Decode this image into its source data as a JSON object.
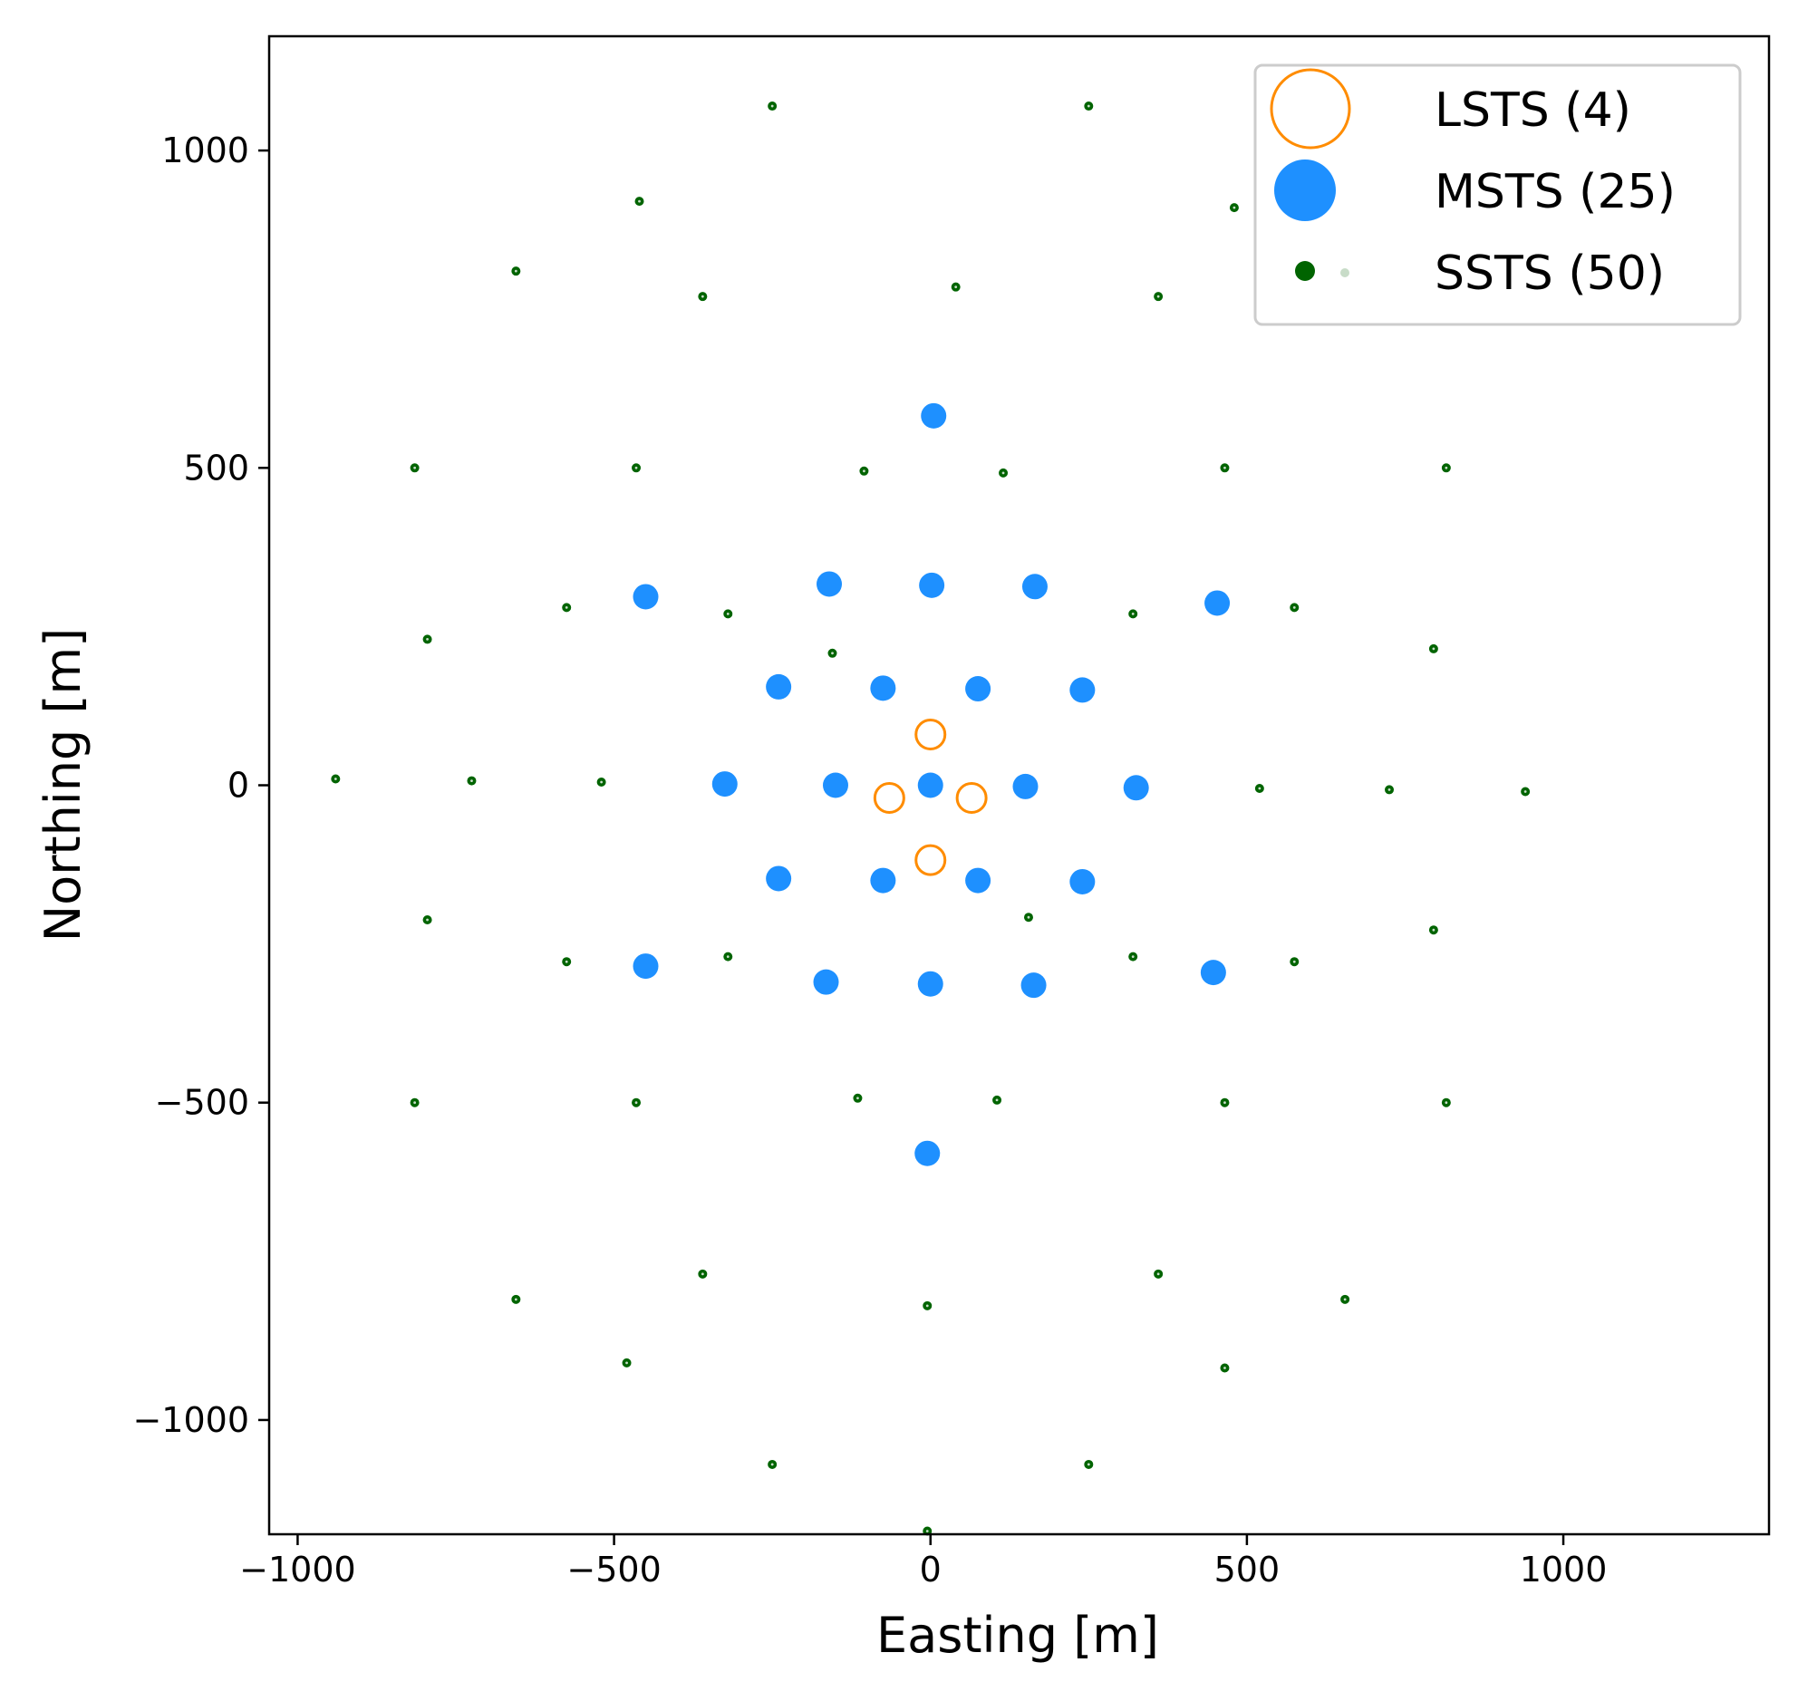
{
  "chart_data": {
    "type": "scatter",
    "title": "",
    "xlabel": "Easting [m]",
    "ylabel": "Northing [m]",
    "xlim": [
      -1045,
      1325
    ],
    "ylim": [
      -1180,
      1180
    ],
    "xticks": [
      -1000,
      -500,
      0,
      500,
      1000
    ],
    "yticks": [
      -1000,
      -500,
      0,
      500,
      1000
    ],
    "xtick_labels": [
      "−1000",
      "−500",
      "0",
      "500",
      "1000"
    ],
    "ytick_labels": [
      "−1000",
      "−500",
      "0",
      "500",
      "1000"
    ],
    "grid": false,
    "legend_position": "top-right",
    "series": [
      {
        "name": "LSTS (4)",
        "marker": "open-circle-large",
        "color": "#ff8c00",
        "points": [
          [
            0,
            80
          ],
          [
            -65,
            -20
          ],
          [
            65,
            -20
          ],
          [
            0,
            -118
          ]
        ]
      },
      {
        "name": "MSTS (25)",
        "marker": "filled-circle-medium",
        "color": "#1e90ff",
        "points": [
          [
            5,
            582
          ],
          [
            -450,
            297
          ],
          [
            -160,
            317
          ],
          [
            2,
            315
          ],
          [
            165,
            313
          ],
          [
            453,
            287
          ],
          [
            -240,
            155
          ],
          [
            -75,
            153
          ],
          [
            75,
            152
          ],
          [
            240,
            150
          ],
          [
            -325,
            2
          ],
          [
            -150,
            0
          ],
          [
            0,
            0
          ],
          [
            150,
            -2
          ],
          [
            325,
            -4
          ],
          [
            -240,
            -147
          ],
          [
            -75,
            -150
          ],
          [
            75,
            -150
          ],
          [
            240,
            -152
          ],
          [
            -450,
            -285
          ],
          [
            -165,
            -310
          ],
          [
            0,
            -313
          ],
          [
            163,
            -315
          ],
          [
            447,
            -295
          ],
          [
            -5,
            -580
          ]
        ]
      },
      {
        "name": "SSTS (50)",
        "marker": "small-dot",
        "color": "#006400",
        "points": [
          [
            -250,
            1070
          ],
          [
            250,
            1070
          ],
          [
            -460,
            920
          ],
          [
            480,
            910
          ],
          [
            -655,
            810
          ],
          [
            -360,
            770
          ],
          [
            40,
            785
          ],
          [
            360,
            770
          ],
          [
            -815,
            500
          ],
          [
            -465,
            500
          ],
          [
            -105,
            495
          ],
          [
            115,
            492
          ],
          [
            465,
            500
          ],
          [
            815,
            500
          ],
          [
            -575,
            280
          ],
          [
            -320,
            270
          ],
          [
            320,
            270
          ],
          [
            575,
            280
          ],
          [
            -795,
            230
          ],
          [
            -155,
            208
          ],
          [
            795,
            215
          ],
          [
            -940,
            10
          ],
          [
            -725,
            7
          ],
          [
            -520,
            5
          ],
          [
            520,
            -5
          ],
          [
            725,
            -7
          ],
          [
            940,
            -10
          ],
          [
            -795,
            -212
          ],
          [
            155,
            -208
          ],
          [
            795,
            -228
          ],
          [
            -575,
            -278
          ],
          [
            -320,
            -270
          ],
          [
            320,
            -270
          ],
          [
            575,
            -278
          ],
          [
            -815,
            -500
          ],
          [
            -465,
            -500
          ],
          [
            -115,
            -493
          ],
          [
            105,
            -496
          ],
          [
            465,
            -500
          ],
          [
            815,
            -500
          ],
          [
            -360,
            -770
          ],
          [
            360,
            -770
          ],
          [
            -655,
            -810
          ],
          [
            -5,
            -820
          ],
          [
            655,
            -810
          ],
          [
            -480,
            -910
          ],
          [
            465,
            -918
          ],
          [
            -250,
            -1070
          ],
          [
            250,
            -1070
          ],
          [
            -5,
            -1175
          ]
        ]
      }
    ]
  }
}
